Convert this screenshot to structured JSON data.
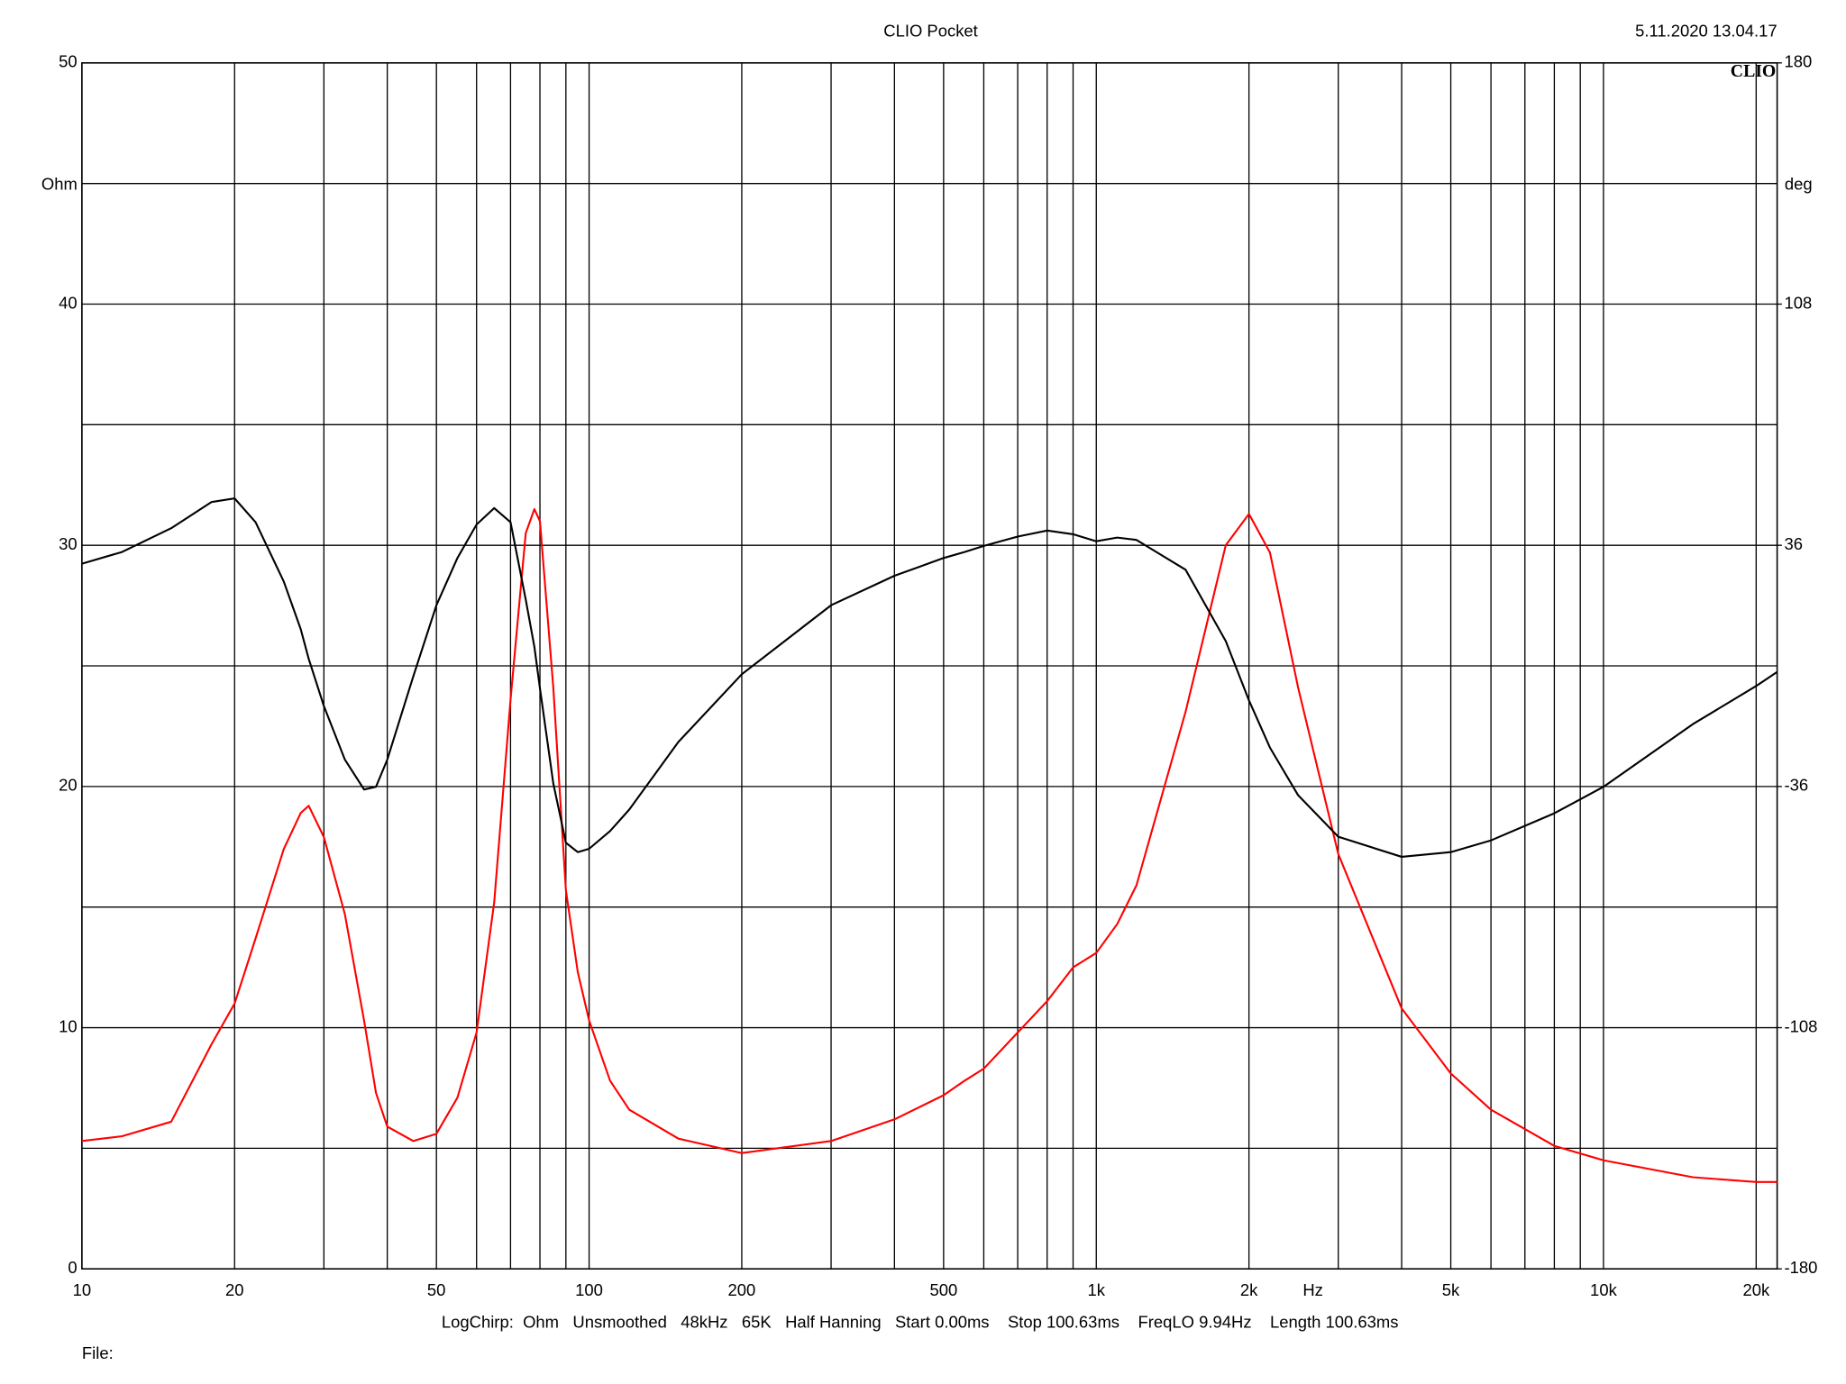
{
  "chart_data": {
    "type": "line",
    "title": "CLIO Pocket",
    "timestamp": "5.11.2020 13.04.17",
    "logo": "CLIO",
    "y_label": "Ohm",
    "y2_label": "deg",
    "x_label": "Hz",
    "footer": "LogChirp:  Ohm   Unsmoothed   48kHz   65K   Half Hanning   Start 0.00ms    Stop 100.63ms    FreqLO 9.94Hz    Length 100.63ms",
    "file_label": "File:",
    "x_log": true,
    "grid": true,
    "xlim": [
      10,
      22000
    ],
    "xticks": [
      10,
      20,
      50,
      100,
      200,
      500,
      {
        "value": 1000,
        "label": "1k"
      },
      {
        "value": 2000,
        "label": "2k"
      },
      {
        "value": 5000,
        "label": "5k"
      },
      {
        "value": 10000,
        "label": "10k"
      },
      {
        "value": 20000,
        "label": "20k"
      }
    ],
    "xminor": [
      30,
      40,
      60,
      70,
      80,
      90,
      300,
      400,
      600,
      700,
      800,
      900,
      3000,
      4000,
      6000,
      7000,
      8000,
      9000
    ],
    "ylim": [
      0,
      50
    ],
    "yticks": [
      0,
      10,
      20,
      30,
      40,
      50
    ],
    "yminor": [
      5,
      15,
      25,
      35,
      45
    ],
    "y2lim": [
      -180,
      180
    ],
    "y2ticks": [
      -180,
      -108,
      -36,
      36,
      108,
      180
    ],
    "x": [
      10,
      12,
      15,
      18,
      20,
      22,
      25,
      27,
      28,
      30,
      33,
      36,
      38,
      40,
      45,
      50,
      55,
      60,
      65,
      70,
      75,
      78,
      80,
      85,
      90,
      95,
      100,
      110,
      120,
      150,
      200,
      300,
      400,
      500,
      550,
      600,
      700,
      800,
      900,
      1000,
      1100,
      1200,
      1500,
      1800,
      2000,
      2200,
      2500,
      3000,
      4000,
      5000,
      6000,
      8000,
      10000,
      15000,
      20000,
      22000
    ],
    "series": [
      {
        "color": "#ff0000",
        "values": [
          5.3,
          5.5,
          6.1,
          9.3,
          11.0,
          13.7,
          17.4,
          18.9,
          19.2,
          17.9,
          14.7,
          10.3,
          7.3,
          5.9,
          5.3,
          5.6,
          7.1,
          9.8,
          15.2,
          23.6,
          30.5,
          31.5,
          31.0,
          24.1,
          15.7,
          12.3,
          10.3,
          7.8,
          6.6,
          5.4,
          4.8,
          5.3,
          6.2,
          7.2,
          7.8,
          8.3,
          9.8,
          11.1,
          12.5,
          13.1,
          14.3,
          15.9,
          23.1,
          30.0,
          31.3,
          29.7,
          24.1,
          17.2,
          10.8,
          8.1,
          6.6,
          5.1,
          4.5,
          3.8,
          3.6,
          3.6
        ]
      },
      {
        "color": "#000000",
        "axis": "y2",
        "values": [
          30.5,
          34.0,
          41.1,
          48.9,
          50.0,
          42.9,
          25.2,
          11.0,
          2.1,
          -12.0,
          -28.0,
          -36.9,
          -36.1,
          -28.0,
          -3.2,
          18.1,
          32.2,
          42.2,
          47.1,
          42.9,
          19.8,
          5.7,
          -6.7,
          -35.1,
          -52.8,
          -55.6,
          -54.6,
          -49.3,
          -42.9,
          -22.7,
          -2.5,
          18.1,
          26.9,
          32.2,
          34.0,
          35.8,
          38.6,
          40.4,
          39.3,
          37.2,
          38.3,
          37.6,
          28.7,
          7.4,
          -10.3,
          -24.4,
          -38.6,
          -51.0,
          -57.0,
          -55.6,
          -52.1,
          -44.0,
          -36.1,
          -17.4,
          -6.0,
          -1.8
        ]
      }
    ]
  }
}
